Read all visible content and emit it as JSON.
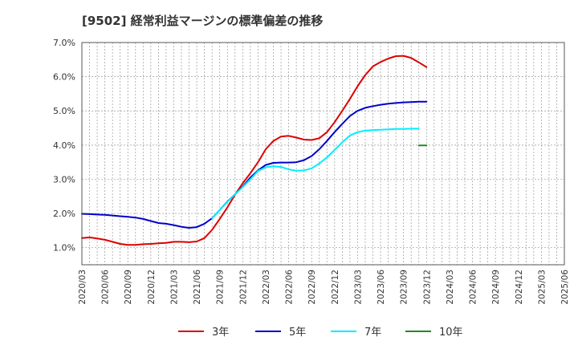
{
  "chart_data": {
    "type": "line",
    "title": "[9502]  経常利益マージンの標準偏差の推移",
    "xlabel": "",
    "ylabel": "",
    "ylim": [
      0.5,
      7.0
    ],
    "yticks": [
      1.0,
      2.0,
      3.0,
      4.0,
      5.0,
      6.0,
      7.0
    ],
    "ytick_labels": [
      "1.0%",
      "2.0%",
      "3.0%",
      "4.0%",
      "5.0%",
      "6.0%",
      "7.0%"
    ],
    "x_tick_labels": [
      "2020/03",
      "2020/06",
      "2020/09",
      "2020/12",
      "2021/03",
      "2021/06",
      "2021/09",
      "2021/12",
      "2022/03",
      "2022/06",
      "2022/09",
      "2022/12",
      "2023/03",
      "2023/06",
      "2023/09",
      "2023/12",
      "2024/03",
      "2024/06",
      "2024/09",
      "2024/12",
      "2025/03",
      "2025/06"
    ],
    "grid": true,
    "legend_position": "bottom",
    "series": [
      {
        "name": "3年",
        "color": "#dd0000",
        "start_index": 0,
        "values": [
          1.28,
          1.3,
          1.27,
          1.23,
          1.17,
          1.11,
          1.08,
          1.08,
          1.1,
          1.11,
          1.13,
          1.14,
          1.17,
          1.17,
          1.16,
          1.18,
          1.28,
          1.52,
          1.84,
          2.18,
          2.55,
          2.88,
          3.18,
          3.5,
          3.88,
          4.12,
          4.25,
          4.27,
          4.22,
          4.16,
          4.15,
          4.2,
          4.38,
          4.67,
          5.0,
          5.35,
          5.72,
          6.05,
          6.3,
          6.43,
          6.53,
          6.6,
          6.61,
          6.55,
          6.42,
          6.28
        ]
      },
      {
        "name": "5年",
        "color": "#0000cc",
        "start_index": 0,
        "values": [
          1.99,
          1.98,
          1.97,
          1.96,
          1.94,
          1.92,
          1.9,
          1.88,
          1.84,
          1.78,
          1.72,
          1.7,
          1.66,
          1.61,
          1.58,
          1.6,
          1.7,
          1.86,
          2.1,
          2.35,
          2.56,
          2.78,
          3.05,
          3.26,
          3.42,
          3.48,
          3.49,
          3.49,
          3.5,
          3.56,
          3.68,
          3.88,
          4.12,
          4.38,
          4.62,
          4.85,
          5.0,
          5.09,
          5.14,
          5.18,
          5.21,
          5.23,
          5.25,
          5.26,
          5.27,
          5.27
        ]
      },
      {
        "name": "7年",
        "color": "#00eeff",
        "start_index": 17,
        "values": [
          1.86,
          2.1,
          2.34,
          2.56,
          2.77,
          3.0,
          3.24,
          3.35,
          3.38,
          3.36,
          3.29,
          3.25,
          3.26,
          3.32,
          3.46,
          3.64,
          3.86,
          4.08,
          4.28,
          4.38,
          4.42,
          4.44,
          4.45,
          4.46,
          4.47,
          4.47,
          4.48,
          4.48
        ]
      },
      {
        "name": "10年",
        "color": "#228822",
        "start_index": 44,
        "values": [
          3.99,
          3.99
        ]
      }
    ]
  }
}
